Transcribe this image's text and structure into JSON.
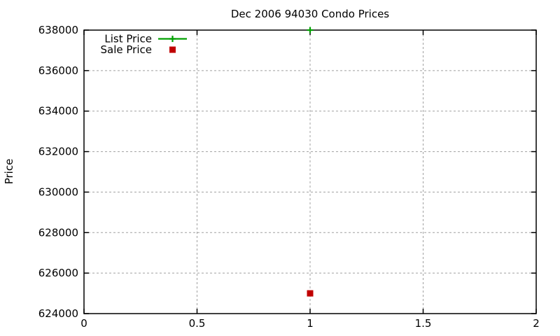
{
  "window": {
    "background": "#ffffff"
  },
  "chart_data": {
    "type": "scatter",
    "title": "Dec 2006 94030 Condo Prices",
    "xlabel": "",
    "ylabel": "Price",
    "xlim": [
      0,
      2
    ],
    "ylim": [
      624000,
      638000
    ],
    "xticks": {
      "values": [
        0,
        0.5,
        1,
        1.5,
        2
      ],
      "labels": [
        "0",
        "0.5",
        "1",
        "1.5",
        "2"
      ]
    },
    "yticks": {
      "values": [
        624000,
        626000,
        628000,
        630000,
        632000,
        634000,
        636000,
        638000
      ],
      "labels": [
        "624000",
        "626000",
        "628000",
        "630000",
        "632000",
        "634000",
        "636000",
        "638000"
      ]
    },
    "grid": {
      "show": true,
      "color": "#a0a0a0",
      "style": "dashed"
    },
    "axis_color": "#000000",
    "text_color": "#000000",
    "legend": {
      "position": "top-left",
      "border": false
    },
    "series": [
      {
        "name": "List Price",
        "style": "linespoints",
        "marker": "plus",
        "color": "#00a000",
        "points": [
          {
            "x": 1,
            "y": 638000
          }
        ]
      },
      {
        "name": "Sale Price",
        "style": "points",
        "marker": "filled-square",
        "color": "#c00000",
        "points": [
          {
            "x": 1,
            "y": 625000
          }
        ]
      }
    ]
  }
}
